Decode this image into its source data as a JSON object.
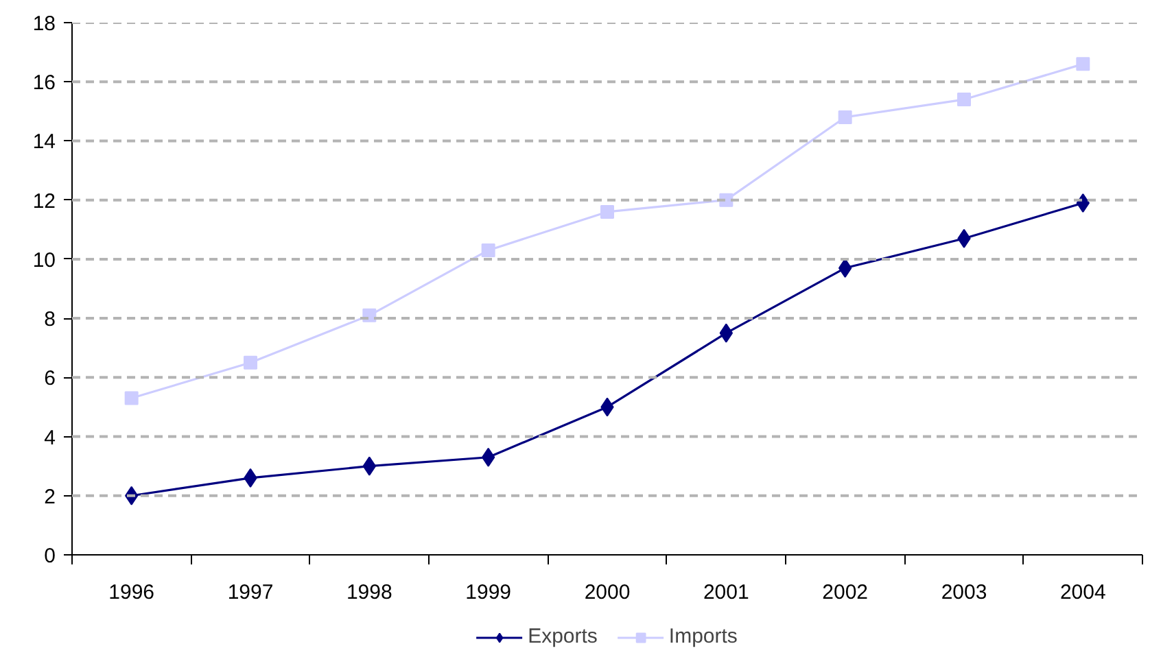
{
  "chart_data": {
    "type": "line",
    "categories": [
      "1996",
      "1997",
      "1998",
      "1999",
      "2000",
      "2001",
      "2002",
      "2003",
      "2004"
    ],
    "series": [
      {
        "name": "Exports",
        "color": "#000080",
        "marker": "diamond",
        "values": [
          2.0,
          2.6,
          3.0,
          3.3,
          5.0,
          7.5,
          9.7,
          10.7,
          11.9
        ]
      },
      {
        "name": "Imports",
        "color": "#ccccff",
        "marker": "square",
        "values": [
          5.3,
          6.5,
          8.1,
          10.3,
          11.6,
          12.0,
          14.8,
          15.4,
          16.6
        ]
      }
    ],
    "ylim": [
      0,
      18
    ],
    "yticks": [
      0,
      2,
      4,
      6,
      8,
      10,
      12,
      14,
      16,
      18
    ],
    "grid": "y",
    "legend": "bottom",
    "line_style": "solid"
  }
}
